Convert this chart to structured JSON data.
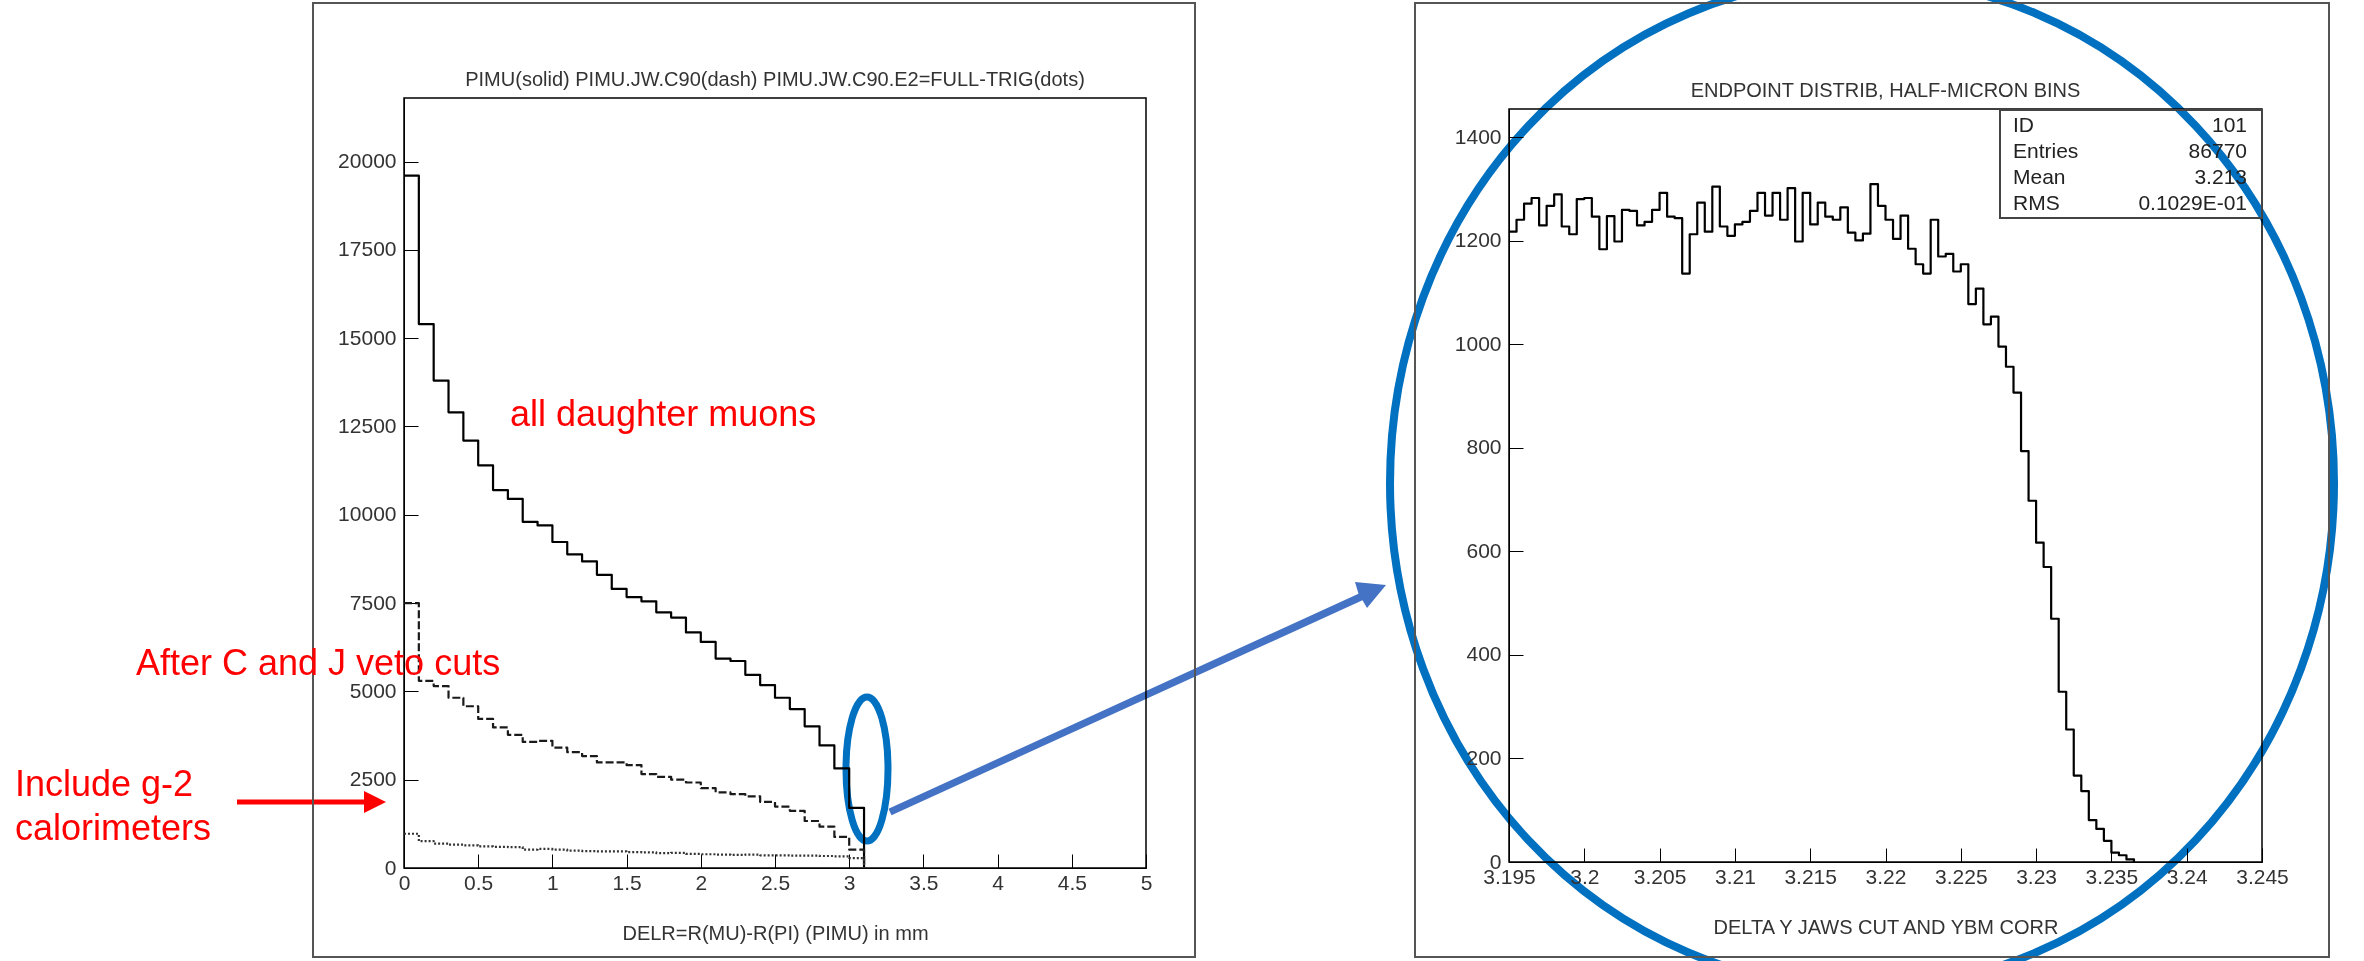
{
  "chart_data": [
    {
      "type": "histogram",
      "title": "PIMU(solid) PIMU.JW.C90(dash) PIMU.JW.C90.E2=FULL-TRIG(dots)",
      "xlabel": "DELR=R(MU)-R(PI) (PIMU) in mm",
      "bins": [
        0,
        0.1,
        0.2,
        0.3,
        0.4,
        0.5,
        0.6,
        0.7,
        0.8,
        0.9,
        1.0,
        1.1,
        1.2,
        1.3,
        1.4,
        1.5,
        1.6,
        1.7,
        1.8,
        1.9,
        2.0,
        2.1,
        2.2,
        2.3,
        2.4,
        2.5,
        2.6,
        2.7,
        2.8,
        2.9,
        3.0,
        3.1
      ],
      "series": [
        {
          "color": "#000000",
          "line_style": "solid",
          "values": [
            19600,
            15400,
            13800,
            12900,
            12100,
            11400,
            10700,
            10450,
            9800,
            9700,
            9230,
            8880,
            8680,
            8300,
            7900,
            7670,
            7550,
            7240,
            7090,
            6670,
            6400,
            5930,
            5860,
            5470,
            5180,
            4820,
            4500,
            4010,
            3470,
            2820,
            1700
          ]
        },
        {
          "color": "#1a1a1a",
          "line_style": "dashed",
          "values": [
            7500,
            5300,
            5150,
            4820,
            4580,
            4220,
            3980,
            3770,
            3570,
            3600,
            3410,
            3280,
            3170,
            2990,
            2990,
            2910,
            2660,
            2580,
            2500,
            2420,
            2260,
            2140,
            2090,
            2030,
            1870,
            1740,
            1620,
            1330,
            1170,
            880,
            520
          ]
        },
        {
          "color": "#333333",
          "line_style": "dotted",
          "values": [
            970,
            760,
            690,
            660,
            640,
            610,
            600,
            590,
            520,
            540,
            520,
            490,
            480,
            470,
            470,
            450,
            440,
            420,
            430,
            400,
            390,
            380,
            370,
            380,
            360,
            360,
            350,
            350,
            340,
            330,
            280
          ]
        }
      ],
      "xlim": [
        0,
        5
      ],
      "xticks": [
        0,
        0.5,
        1,
        1.5,
        2,
        2.5,
        3,
        3.5,
        4,
        4.5,
        5
      ],
      "ylim": [
        0,
        21800
      ],
      "yticks": [
        0,
        2500,
        5000,
        7500,
        10000,
        12500,
        15000,
        17500,
        20000
      ],
      "annotations": [
        "all daughter muons",
        "After C and J veto cuts",
        "Include g-2 calorimeters"
      ]
    },
    {
      "type": "histogram",
      "title": "ENDPOINT DISTRIB, HALF-MICRON BINS",
      "xlabel": "DELTA Y JAWS CUT  AND YBM CORR",
      "bins": [
        3.195,
        3.1955,
        3.196,
        3.1965,
        3.197,
        3.1975,
        3.198,
        3.1985,
        3.199,
        3.1995,
        3.2,
        3.2005,
        3.201,
        3.2015,
        3.202,
        3.2025,
        3.203,
        3.2035,
        3.204,
        3.2045,
        3.205,
        3.2055,
        3.206,
        3.2065,
        3.207,
        3.2075,
        3.208,
        3.2085,
        3.209,
        3.2095,
        3.21,
        3.2105,
        3.211,
        3.2115,
        3.212,
        3.2125,
        3.213,
        3.2135,
        3.214,
        3.2145,
        3.215,
        3.2155,
        3.216,
        3.2165,
        3.217,
        3.2175,
        3.218,
        3.2185,
        3.219,
        3.2195,
        3.22,
        3.2205,
        3.221,
        3.2215,
        3.222,
        3.2225,
        3.223,
        3.2235,
        3.224,
        3.2245,
        3.225,
        3.2255,
        3.226,
        3.2265,
        3.227,
        3.2275,
        3.228,
        3.2285,
        3.229,
        3.2295,
        3.23,
        3.2305,
        3.231,
        3.2315,
        3.232,
        3.2325,
        3.233,
        3.2335,
        3.234,
        3.2345,
        3.235,
        3.2355,
        3.236,
        3.2365
      ],
      "color": "#000000",
      "values": [
        1218,
        1241,
        1272,
        1283,
        1230,
        1268,
        1290,
        1228,
        1213,
        1281,
        1283,
        1247,
        1184,
        1248,
        1199,
        1260,
        1258,
        1230,
        1237,
        1260,
        1293,
        1247,
        1244,
        1137,
        1213,
        1274,
        1218,
        1305,
        1228,
        1210,
        1232,
        1237,
        1258,
        1293,
        1249,
        1293,
        1241,
        1302,
        1199,
        1293,
        1232,
        1274,
        1247,
        1241,
        1265,
        1216,
        1201,
        1214,
        1310,
        1268,
        1241,
        1204,
        1249,
        1185,
        1155,
        1137,
        1241,
        1170,
        1175,
        1141,
        1155,
        1078,
        1108,
        1039,
        1054,
        996,
        957,
        907,
        794,
        698,
        617,
        570,
        470,
        329,
        256,
        167,
        137,
        81,
        64,
        41,
        18,
        13,
        5
      ],
      "xlim": [
        3.195,
        3.245
      ],
      "xticks": [
        3.195,
        3.2,
        3.205,
        3.21,
        3.215,
        3.22,
        3.225,
        3.23,
        3.235,
        3.24,
        3.245
      ],
      "ylim": [
        0,
        1455
      ],
      "yticks": [
        0,
        200,
        400,
        600,
        800,
        1000,
        1200,
        1400
      ],
      "annotations": [
        "ID",
        "101",
        "Entries",
        "86770",
        "Mean",
        "3.213",
        "RMS",
        "0.1029E-01"
      ]
    }
  ]
}
